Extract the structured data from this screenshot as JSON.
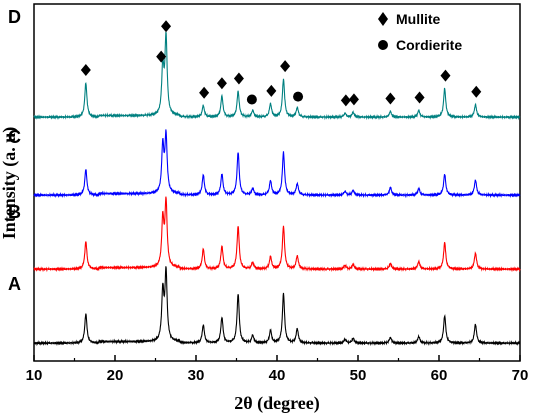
{
  "chart_data": {
    "type": "line",
    "xlabel": "2θ (degree)",
    "ylabel": "Intensity (a. u)",
    "xlim": [
      10,
      70
    ],
    "x_ticks": [
      "10",
      "20",
      "30",
      "40",
      "50",
      "60",
      "70"
    ],
    "y_ticks_shown": false,
    "colors": {
      "A": "#000000",
      "B": "#ff0000",
      "C": "#0000ff",
      "D": "#008080"
    },
    "series": [
      {
        "name": "A",
        "color": "#000000",
        "offset": 0,
        "peaks": [
          [
            16.4,
            0.31
          ],
          [
            25.9,
            0.52
          ],
          [
            26.3,
            0.72
          ],
          [
            30.9,
            0.19
          ],
          [
            33.2,
            0.27
          ],
          [
            35.2,
            0.52
          ],
          [
            37.0,
            0.08
          ],
          [
            39.2,
            0.13
          ],
          [
            40.8,
            0.52
          ],
          [
            42.5,
            0.15
          ],
          [
            48.4,
            0.04
          ],
          [
            49.4,
            0.05
          ],
          [
            54.0,
            0.06
          ],
          [
            57.5,
            0.07
          ],
          [
            60.7,
            0.29
          ],
          [
            64.5,
            0.2
          ]
        ]
      },
      {
        "name": "B",
        "color": "#ff0000",
        "offset": 1,
        "peaks": [
          [
            16.4,
            0.29
          ],
          [
            25.9,
            0.5
          ],
          [
            26.3,
            0.68
          ],
          [
            30.9,
            0.21
          ],
          [
            33.2,
            0.24
          ],
          [
            35.2,
            0.45
          ],
          [
            37.0,
            0.07
          ],
          [
            39.2,
            0.13
          ],
          [
            40.8,
            0.45
          ],
          [
            42.5,
            0.14
          ],
          [
            48.4,
            0.04
          ],
          [
            49.4,
            0.05
          ],
          [
            54.0,
            0.06
          ],
          [
            57.5,
            0.08
          ],
          [
            60.7,
            0.28
          ],
          [
            64.5,
            0.17
          ]
        ]
      },
      {
        "name": "C",
        "color": "#0000ff",
        "offset": 2,
        "peaks": [
          [
            16.4,
            0.27
          ],
          [
            25.9,
            0.5
          ],
          [
            26.3,
            0.6
          ],
          [
            30.9,
            0.21
          ],
          [
            33.2,
            0.22
          ],
          [
            35.2,
            0.45
          ],
          [
            37.0,
            0.07
          ],
          [
            39.2,
            0.15
          ],
          [
            40.8,
            0.45
          ],
          [
            42.5,
            0.12
          ],
          [
            48.4,
            0.04
          ],
          [
            49.4,
            0.05
          ],
          [
            54.0,
            0.08
          ],
          [
            57.5,
            0.07
          ],
          [
            60.7,
            0.22
          ],
          [
            64.5,
            0.16
          ]
        ]
      },
      {
        "name": "D",
        "color": "#008080",
        "offset": 3,
        "peaks": [
          [
            16.4,
            0.36
          ],
          [
            25.9,
            0.5
          ],
          [
            26.3,
            0.82
          ],
          [
            30.9,
            0.12
          ],
          [
            33.2,
            0.22
          ],
          [
            35.2,
            0.27
          ],
          [
            37.0,
            0.07
          ],
          [
            39.2,
            0.14
          ],
          [
            40.8,
            0.4
          ],
          [
            42.5,
            0.1
          ],
          [
            48.4,
            0.04
          ],
          [
            49.4,
            0.05
          ],
          [
            54.0,
            0.06
          ],
          [
            57.5,
            0.07
          ],
          [
            60.7,
            0.3
          ],
          [
            64.5,
            0.13
          ]
        ]
      }
    ],
    "legend": [
      {
        "marker": "diamond",
        "label": "Mullite"
      },
      {
        "marker": "circle",
        "label": "Cordierite"
      }
    ],
    "phase_markers": {
      "mullite_2theta": [
        16.4,
        25.7,
        26.3,
        31.0,
        33.2,
        35.3,
        39.3,
        41.0,
        48.5,
        49.5,
        54.0,
        57.6,
        60.8,
        64.6
      ],
      "cordierite_2theta": [
        36.9,
        42.6
      ]
    }
  }
}
